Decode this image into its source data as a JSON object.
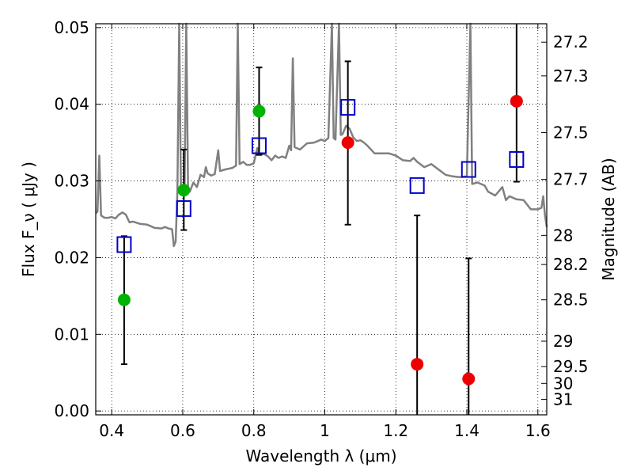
{
  "chart_data": {
    "type": "scatter",
    "xlabel": "Wavelength  λ (μm)",
    "ylabel": "Flux  F_ν  ( μJy )",
    "y2label": "Magnitude (AB)",
    "xlim": [
      0.355,
      1.625
    ],
    "ylim": [
      -0.0005,
      0.0505
    ],
    "x_ticks": [
      0.4,
      0.6,
      0.8,
      1.0,
      1.2,
      1.4,
      1.6
    ],
    "x_tick_labels": [
      "0.4",
      "0.6",
      "0.8",
      "1",
      "1.2",
      "1.4",
      "1.6"
    ],
    "y_ticks": [
      0.0,
      0.01,
      0.02,
      0.03,
      0.04,
      0.05
    ],
    "y_tick_labels": [
      "0.00",
      "0.01",
      "0.02",
      "0.03",
      "0.04",
      "0.05"
    ],
    "y2_ticks": [
      {
        "label": "27.2",
        "flux": 0.0481
      },
      {
        "label": "27.3",
        "flux": 0.0437
      },
      {
        "label": "27.5",
        "flux": 0.0363
      },
      {
        "label": "27.7",
        "flux": 0.0302
      },
      {
        "label": "28",
        "flux": 0.0229
      },
      {
        "label": "28.2",
        "flux": 0.0191
      },
      {
        "label": "28.5",
        "flux": 0.0145
      },
      {
        "label": "29",
        "flux": 0.0091
      },
      {
        "label": "29.5",
        "flux": 0.0058
      },
      {
        "label": "30",
        "flux": 0.0036
      },
      {
        "label": "31",
        "flux": 0.0015
      }
    ],
    "grid": true,
    "series": [
      {
        "marker": "line",
        "color": "#808080",
        "points": [
          [
            0.355,
            0.0258
          ],
          [
            0.36,
            0.026
          ],
          [
            0.365,
            0.0333
          ],
          [
            0.37,
            0.0255
          ],
          [
            0.38,
            0.0252
          ],
          [
            0.39,
            0.0252
          ],
          [
            0.4,
            0.0253
          ],
          [
            0.41,
            0.0251
          ],
          [
            0.42,
            0.0256
          ],
          [
            0.43,
            0.0259
          ],
          [
            0.44,
            0.0256
          ],
          [
            0.45,
            0.0246
          ],
          [
            0.46,
            0.0247
          ],
          [
            0.48,
            0.0244
          ],
          [
            0.5,
            0.0243
          ],
          [
            0.52,
            0.0239
          ],
          [
            0.54,
            0.0238
          ],
          [
            0.55,
            0.024
          ],
          [
            0.56,
            0.0238
          ],
          [
            0.57,
            0.0237
          ],
          [
            0.575,
            0.0215
          ],
          [
            0.58,
            0.0221
          ],
          [
            0.585,
            0.0287
          ],
          [
            0.59,
            0.051
          ],
          [
            0.595,
            0.0286
          ],
          [
            0.6,
            0.0282
          ],
          [
            0.605,
            0.0287
          ],
          [
            0.61,
            0.051
          ],
          [
            0.615,
            0.0287
          ],
          [
            0.62,
            0.0286
          ],
          [
            0.63,
            0.0298
          ],
          [
            0.64,
            0.0292
          ],
          [
            0.65,
            0.0308
          ],
          [
            0.66,
            0.0305
          ],
          [
            0.665,
            0.0318
          ],
          [
            0.67,
            0.031
          ],
          [
            0.68,
            0.0307
          ],
          [
            0.69,
            0.0309
          ],
          [
            0.7,
            0.034
          ],
          [
            0.705,
            0.0313
          ],
          [
            0.72,
            0.0315
          ],
          [
            0.74,
            0.0317
          ],
          [
            0.75,
            0.032
          ],
          [
            0.755,
            0.051
          ],
          [
            0.76,
            0.0322
          ],
          [
            0.77,
            0.0325
          ],
          [
            0.78,
            0.0321
          ],
          [
            0.79,
            0.0321
          ],
          [
            0.8,
            0.0323
          ],
          [
            0.81,
            0.0343
          ],
          [
            0.815,
            0.0335
          ],
          [
            0.83,
            0.0335
          ],
          [
            0.84,
            0.0332
          ],
          [
            0.85,
            0.0327
          ],
          [
            0.86,
            0.0333
          ],
          [
            0.87,
            0.033
          ],
          [
            0.88,
            0.0332
          ],
          [
            0.89,
            0.033
          ],
          [
            0.9,
            0.0346
          ],
          [
            0.905,
            0.034
          ],
          [
            0.91,
            0.046
          ],
          [
            0.915,
            0.0344
          ],
          [
            0.93,
            0.0341
          ],
          [
            0.95,
            0.0349
          ],
          [
            0.97,
            0.035
          ],
          [
            0.99,
            0.0354
          ],
          [
            1.0,
            0.0352
          ],
          [
            1.01,
            0.0356
          ],
          [
            1.02,
            0.051
          ],
          [
            1.025,
            0.0356
          ],
          [
            1.03,
            0.0354
          ],
          [
            1.04,
            0.051
          ],
          [
            1.045,
            0.036
          ],
          [
            1.05,
            0.0361
          ],
          [
            1.06,
            0.0372
          ],
          [
            1.07,
            0.0368
          ],
          [
            1.08,
            0.0357
          ],
          [
            1.09,
            0.0352
          ],
          [
            1.1,
            0.0353
          ],
          [
            1.11,
            0.035
          ],
          [
            1.12,
            0.0346
          ],
          [
            1.14,
            0.0336
          ],
          [
            1.16,
            0.0336
          ],
          [
            1.18,
            0.0336
          ],
          [
            1.2,
            0.0333
          ],
          [
            1.22,
            0.0327
          ],
          [
            1.24,
            0.0326
          ],
          [
            1.25,
            0.033
          ],
          [
            1.26,
            0.0325
          ],
          [
            1.28,
            0.0318
          ],
          [
            1.3,
            0.0322
          ],
          [
            1.32,
            0.0315
          ],
          [
            1.34,
            0.0308
          ],
          [
            1.36,
            0.0306
          ],
          [
            1.38,
            0.0305
          ],
          [
            1.4,
            0.0306
          ],
          [
            1.41,
            0.051
          ],
          [
            1.415,
            0.0296
          ],
          [
            1.43,
            0.0298
          ],
          [
            1.45,
            0.0294
          ],
          [
            1.46,
            0.0286
          ],
          [
            1.48,
            0.0281
          ],
          [
            1.5,
            0.0292
          ],
          [
            1.51,
            0.0275
          ],
          [
            1.52,
            0.028
          ],
          [
            1.54,
            0.0276
          ],
          [
            1.56,
            0.0275
          ],
          [
            1.58,
            0.0263
          ],
          [
            1.6,
            0.0263
          ],
          [
            1.61,
            0.0265
          ],
          [
            1.615,
            0.028
          ],
          [
            1.62,
            0.0255
          ],
          [
            1.625,
            0.024
          ]
        ]
      },
      {
        "marker": "square-open",
        "color": "#0000cc",
        "points": [
          [
            0.435,
            0.0217
          ],
          [
            0.603,
            0.0264
          ],
          [
            0.815,
            0.0346
          ],
          [
            1.065,
            0.0396
          ],
          [
            1.26,
            0.0294
          ],
          [
            1.405,
            0.0315
          ],
          [
            1.54,
            0.0328
          ]
        ]
      },
      {
        "marker": "circle",
        "color": "#00b300",
        "points": [
          {
            "x": 0.435,
            "y": 0.0145,
            "err_lo": 0.0061,
            "err_hi": 0.0228
          },
          {
            "x": 0.603,
            "y": 0.0288,
            "err_lo": 0.0236,
            "err_hi": 0.0341
          },
          {
            "x": 0.815,
            "y": 0.0391,
            "err_lo": 0.0334,
            "err_hi": 0.0448
          }
        ]
      },
      {
        "marker": "circle",
        "color": "#ee0000",
        "points": [
          {
            "x": 1.065,
            "y": 0.035,
            "err_lo": 0.0243,
            "err_hi": 0.0456
          },
          {
            "x": 1.26,
            "y": 0.0061,
            "err_lo": null,
            "err_hi": 0.0255
          },
          {
            "x": 1.405,
            "y": 0.0042,
            "err_lo": null,
            "err_hi": 0.0199
          },
          {
            "x": 1.54,
            "y": 0.0404,
            "err_lo": 0.0299,
            "err_hi": null
          }
        ]
      }
    ]
  }
}
